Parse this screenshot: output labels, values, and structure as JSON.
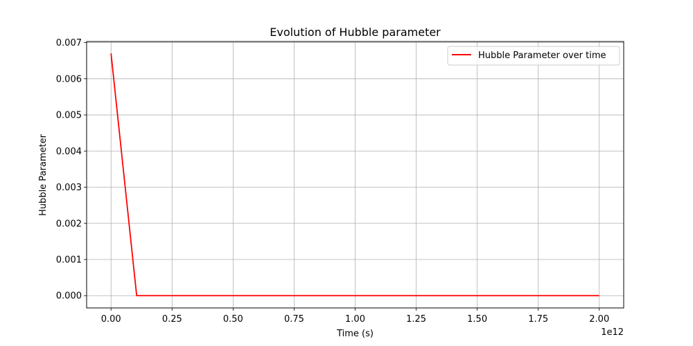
{
  "chart_data": {
    "type": "line",
    "title": "Evolution of Hubble parameter",
    "xlabel": "Time (s)",
    "ylabel": "Hubble Parameter",
    "x_offset_label": "1e12",
    "xlim": [
      -0.1,
      2.1
    ],
    "ylim": [
      -0.00034,
      0.00703
    ],
    "x_ticks": [
      0.0,
      0.25,
      0.5,
      0.75,
      1.0,
      1.25,
      1.5,
      1.75,
      2.0
    ],
    "x_tick_labels": [
      "0.00",
      "0.25",
      "0.50",
      "0.75",
      "1.00",
      "1.25",
      "1.50",
      "1.75",
      "2.00"
    ],
    "y_ticks": [
      0.0,
      0.001,
      0.002,
      0.003,
      0.004,
      0.005,
      0.006,
      0.007
    ],
    "y_tick_labels": [
      "0.000",
      "0.001",
      "0.002",
      "0.003",
      "0.004",
      "0.005",
      "0.006",
      "0.007"
    ],
    "grid": true,
    "legend_position": "upper right",
    "series": [
      {
        "name": "Hubble Parameter over time",
        "color": "#ff0000",
        "x": [
          0.0,
          0.105,
          0.2,
          0.5,
          1.0,
          1.5,
          2.0
        ],
        "y": [
          0.0067,
          0.0,
          0.0,
          0.0,
          0.0,
          0.0,
          0.0
        ]
      }
    ]
  }
}
